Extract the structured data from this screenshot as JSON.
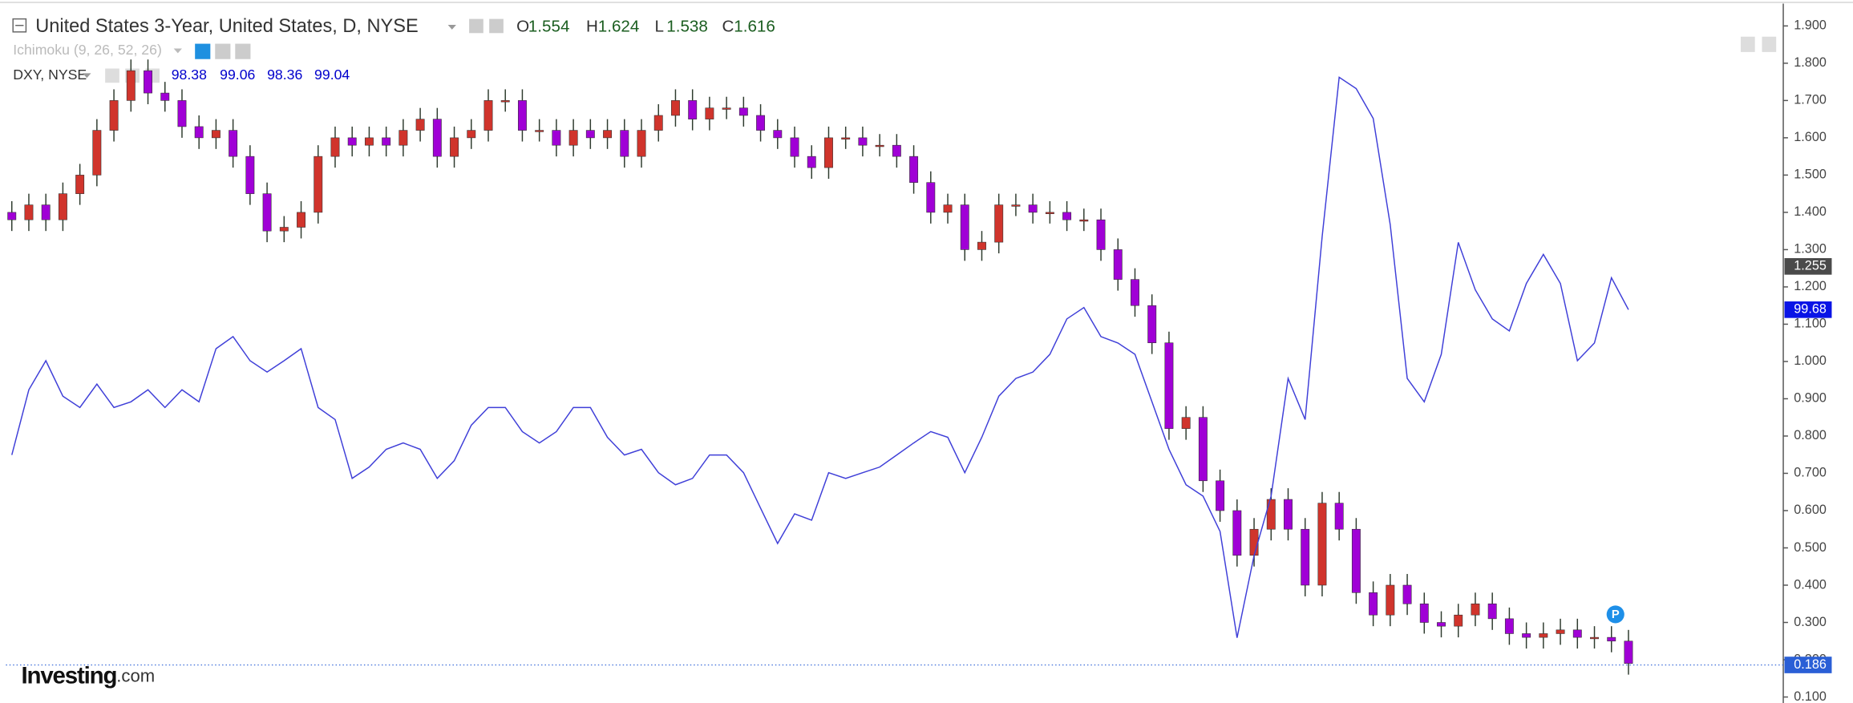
{
  "chart_data": {
    "type": "candlestick",
    "title": "United States 3-Year, United States, D, NYSE",
    "ohlc_letters": [
      "O",
      "H",
      "L",
      "C"
    ],
    "ohlc_values": [
      1.554,
      1.624,
      1.538,
      1.616
    ],
    "indicator": "Ichimoku (9, 26, 52, 26)",
    "up_color": "#d0342c",
    "down_color": "#a000d6",
    "open": [
      1.4,
      1.38,
      1.42,
      1.38,
      1.45,
      1.5,
      1.62,
      1.7,
      1.78,
      1.72,
      1.7,
      1.63,
      1.6,
      1.62,
      1.55,
      1.45,
      1.35,
      1.36,
      1.4,
      1.55,
      1.6,
      1.58,
      1.6,
      1.58,
      1.62,
      1.65,
      1.55,
      1.6,
      1.62,
      1.7,
      1.7,
      1.62,
      1.62,
      1.58,
      1.62,
      1.6,
      1.62,
      1.55,
      1.62,
      1.66,
      1.7,
      1.65,
      1.68,
      1.68,
      1.66,
      1.62,
      1.6,
      1.55,
      1.52,
      1.6,
      1.6,
      1.58,
      1.58,
      1.55,
      1.48,
      1.4,
      1.42,
      1.3,
      1.32,
      1.42,
      1.42,
      1.4,
      1.4,
      1.38,
      1.38,
      1.3,
      1.22,
      1.15,
      1.05,
      0.82,
      0.85,
      0.68,
      0.6,
      0.48,
      0.55,
      0.63,
      0.55,
      0.4,
      0.62,
      0.55,
      0.38,
      0.32,
      0.4,
      0.35,
      0.3,
      0.29,
      0.32,
      0.35,
      0.31,
      0.27,
      0.26,
      0.27,
      0.28,
      0.26,
      0.26,
      0.25
    ],
    "high": [
      1.43,
      1.45,
      1.45,
      1.48,
      1.53,
      1.65,
      1.73,
      1.81,
      1.81,
      1.75,
      1.73,
      1.66,
      1.65,
      1.65,
      1.58,
      1.48,
      1.39,
      1.43,
      1.58,
      1.63,
      1.63,
      1.63,
      1.63,
      1.65,
      1.68,
      1.68,
      1.63,
      1.65,
      1.73,
      1.73,
      1.73,
      1.65,
      1.65,
      1.65,
      1.65,
      1.65,
      1.65,
      1.65,
      1.69,
      1.73,
      1.73,
      1.71,
      1.71,
      1.71,
      1.69,
      1.65,
      1.63,
      1.58,
      1.63,
      1.63,
      1.63,
      1.61,
      1.61,
      1.58,
      1.51,
      1.45,
      1.45,
      1.35,
      1.45,
      1.45,
      1.45,
      1.43,
      1.43,
      1.41,
      1.41,
      1.33,
      1.25,
      1.18,
      1.08,
      0.88,
      0.88,
      0.71,
      0.63,
      0.58,
      0.66,
      0.66,
      0.58,
      0.65,
      0.65,
      0.58,
      0.41,
      0.43,
      0.43,
      0.38,
      0.33,
      0.35,
      0.38,
      0.38,
      0.34,
      0.3,
      0.3,
      0.31,
      0.31,
      0.29,
      0.29,
      0.28
    ],
    "low": [
      1.35,
      1.35,
      1.35,
      1.35,
      1.42,
      1.47,
      1.59,
      1.67,
      1.69,
      1.67,
      1.6,
      1.57,
      1.57,
      1.52,
      1.42,
      1.32,
      1.32,
      1.33,
      1.37,
      1.52,
      1.55,
      1.55,
      1.55,
      1.55,
      1.59,
      1.52,
      1.52,
      1.57,
      1.59,
      1.67,
      1.59,
      1.59,
      1.55,
      1.55,
      1.57,
      1.57,
      1.52,
      1.52,
      1.59,
      1.63,
      1.62,
      1.62,
      1.65,
      1.63,
      1.59,
      1.57,
      1.52,
      1.49,
      1.49,
      1.57,
      1.55,
      1.55,
      1.52,
      1.45,
      1.37,
      1.37,
      1.27,
      1.27,
      1.29,
      1.39,
      1.37,
      1.37,
      1.35,
      1.35,
      1.27,
      1.19,
      1.12,
      1.02,
      0.79,
      0.79,
      0.65,
      0.57,
      0.45,
      0.45,
      0.52,
      0.52,
      0.37,
      0.37,
      0.52,
      0.35,
      0.29,
      0.29,
      0.32,
      0.27,
      0.26,
      0.26,
      0.29,
      0.28,
      0.24,
      0.23,
      0.23,
      0.24,
      0.23,
      0.23,
      0.22,
      0.16
    ],
    "close": [
      1.38,
      1.42,
      1.38,
      1.45,
      1.5,
      1.62,
      1.7,
      1.78,
      1.72,
      1.7,
      1.63,
      1.6,
      1.62,
      1.55,
      1.45,
      1.35,
      1.36,
      1.4,
      1.55,
      1.6,
      1.58,
      1.6,
      1.58,
      1.62,
      1.65,
      1.55,
      1.6,
      1.62,
      1.7,
      1.7,
      1.62,
      1.62,
      1.58,
      1.62,
      1.6,
      1.62,
      1.55,
      1.62,
      1.66,
      1.7,
      1.65,
      1.68,
      1.68,
      1.66,
      1.62,
      1.6,
      1.55,
      1.52,
      1.6,
      1.6,
      1.58,
      1.58,
      1.55,
      1.48,
      1.4,
      1.42,
      1.3,
      1.32,
      1.42,
      1.42,
      1.4,
      1.4,
      1.38,
      1.38,
      1.3,
      1.22,
      1.15,
      1.05,
      0.82,
      0.85,
      0.68,
      0.6,
      0.48,
      0.55,
      0.63,
      0.55,
      0.4,
      0.62,
      0.55,
      0.38,
      0.32,
      0.4,
      0.35,
      0.3,
      0.29,
      0.32,
      0.35,
      0.31,
      0.27,
      0.26,
      0.27,
      0.28,
      0.26,
      0.26,
      0.25,
      0.19
    ],
    "comparison": {
      "name": "DXY, NYSE",
      "legend_values": [
        98.38,
        99.06,
        98.36,
        99.04
      ],
      "color": "#3f3fd8",
      "axis": "y2",
      "values": [
        97.63,
        98.55,
        98.96,
        98.46,
        98.3,
        98.63,
        98.3,
        98.38,
        98.55,
        98.3,
        98.55,
        98.38,
        99.13,
        99.3,
        98.96,
        98.8,
        98.96,
        99.13,
        98.3,
        98.13,
        97.3,
        97.46,
        97.71,
        97.8,
        97.71,
        97.3,
        97.55,
        98.05,
        98.3,
        98.3,
        97.96,
        97.8,
        97.96,
        98.3,
        98.3,
        97.88,
        97.63,
        97.71,
        97.38,
        97.21,
        97.3,
        97.63,
        97.63,
        97.38,
        96.88,
        96.38,
        96.8,
        96.71,
        97.38,
        97.3,
        97.38,
        97.46,
        97.63,
        97.8,
        97.96,
        97.88,
        97.38,
        97.88,
        98.46,
        98.71,
        98.8,
        99.05,
        99.55,
        99.71,
        99.3,
        99.21,
        99.05,
        98.38,
        97.71,
        97.21,
        97.05,
        96.55,
        95.05,
        96.21,
        97.05,
        98.71,
        98.13,
        100.71,
        102.96,
        102.8,
        102.38,
        100.88,
        98.71,
        98.38,
        99.05,
        100.63,
        99.96,
        99.55,
        99.38,
        100.05,
        100.46,
        100.05,
        98.96,
        99.21,
        100.13,
        99.68
      ]
    },
    "ylim": [
      0.084,
      1.96
    ],
    "y2lim": [
      94.13,
      104.0
    ],
    "yticks": [
      {
        "value": 0.1,
        "label": "0.100"
      },
      {
        "value": 0.2,
        "label": "0.200"
      },
      {
        "value": 0.3,
        "label": "0.300"
      },
      {
        "value": 0.4,
        "label": "0.400"
      },
      {
        "value": 0.5,
        "label": "0.500"
      },
      {
        "value": 0.6,
        "label": "0.600"
      },
      {
        "value": 0.7,
        "label": "0.700"
      },
      {
        "value": 0.8,
        "label": "0.800"
      },
      {
        "value": 0.9,
        "label": "0.900"
      },
      {
        "value": 1.0,
        "label": "1.000"
      },
      {
        "value": 1.1,
        "label": "1.100"
      },
      {
        "value": 1.2,
        "label": "1.200"
      },
      {
        "value": 1.3,
        "label": "1.300"
      },
      {
        "value": 1.4,
        "label": "1.400"
      },
      {
        "value": 1.5,
        "label": "1.500"
      },
      {
        "value": 1.6,
        "label": "1.600"
      },
      {
        "value": 1.7,
        "label": "1.700"
      },
      {
        "value": 1.8,
        "label": "1.800"
      },
      {
        "value": 1.9,
        "label": "1.900"
      }
    ],
    "price_markers": [
      {
        "value": 1.255,
        "label": "1.255",
        "color": "#4a4a4a"
      },
      {
        "value": 99.68,
        "label": "99.68",
        "color": "#0a14e6",
        "axis": "y2"
      },
      {
        "value": 0.186,
        "label": "0.186",
        "color": "#2a5fd6",
        "line": true
      }
    ],
    "marker_label": "P",
    "logo": [
      "Investing",
      ".com"
    ]
  }
}
